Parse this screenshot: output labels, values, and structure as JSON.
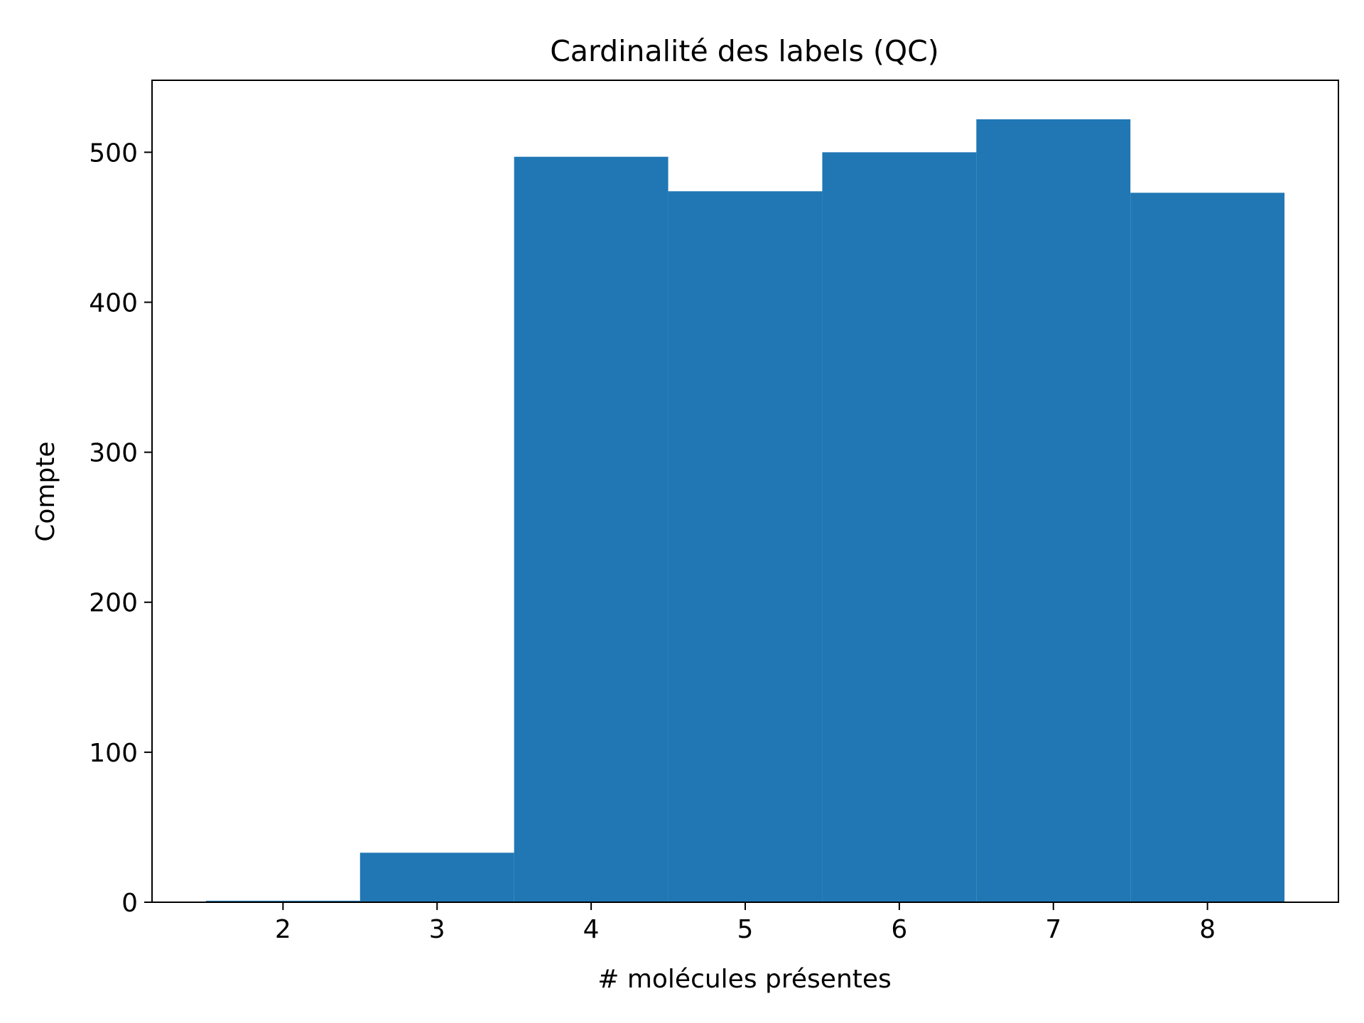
{
  "chart_data": {
    "type": "bar",
    "title": "Cardinalité des labels (QC)",
    "xlabel": "# molécules présentes",
    "ylabel": "Compte",
    "x_ticks": [
      "2",
      "3",
      "4",
      "5",
      "6",
      "7",
      "8"
    ],
    "y_ticks": [
      "0",
      "100",
      "200",
      "300",
      "400",
      "500"
    ],
    "categories": [
      2,
      3,
      4,
      5,
      6,
      7,
      8
    ],
    "values": [
      1,
      33,
      497,
      474,
      500,
      522,
      473
    ],
    "xlim": [
      1.15,
      8.85
    ],
    "ylim": [
      0,
      548
    ],
    "bar_width": 1.0,
    "grid": false,
    "colors": {
      "bar": "#2077b4",
      "axes": "#000000",
      "background": "#ffffff"
    }
  }
}
